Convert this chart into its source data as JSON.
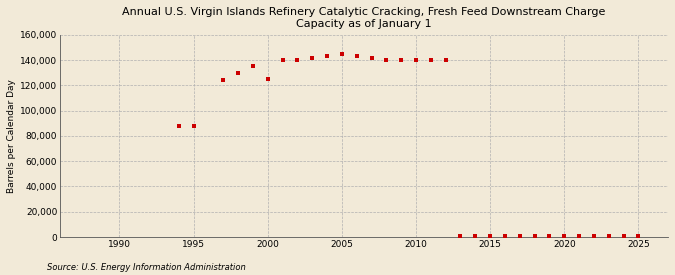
{
  "title": "Annual U.S. Virgin Islands Refinery Catalytic Cracking, Fresh Feed Downstream Charge\nCapacity as of January 1",
  "ylabel": "Barrels per Calendar Day",
  "source": "Source: U.S. Energy Information Administration",
  "background_color": "#f2ead8",
  "plot_background_color": "#f2ead8",
  "marker_color": "#cc0000",
  "marker": "s",
  "marker_size": 3,
  "xlim": [
    1986,
    2027
  ],
  "ylim": [
    0,
    160000
  ],
  "yticks": [
    0,
    20000,
    40000,
    60000,
    80000,
    100000,
    120000,
    140000,
    160000
  ],
  "xticks": [
    1990,
    1995,
    2000,
    2005,
    2010,
    2015,
    2020,
    2025
  ],
  "data": {
    "years": [
      1994,
      1995,
      1997,
      1998,
      1999,
      2000,
      2001,
      2002,
      2003,
      2004,
      2005,
      2006,
      2007,
      2008,
      2009,
      2010,
      2011,
      2012,
      2013,
      2014,
      2015,
      2016,
      2017,
      2018,
      2019,
      2020,
      2021,
      2022,
      2023,
      2024,
      2025
    ],
    "values": [
      88000,
      88000,
      124000,
      130000,
      135000,
      125000,
      140000,
      140000,
      142000,
      143000,
      145000,
      143000,
      142000,
      140000,
      140000,
      140000,
      140000,
      140000,
      1000,
      1000,
      1000,
      1000,
      1000,
      1000,
      1000,
      1000,
      1000,
      1000,
      1000,
      1000,
      1000
    ]
  }
}
